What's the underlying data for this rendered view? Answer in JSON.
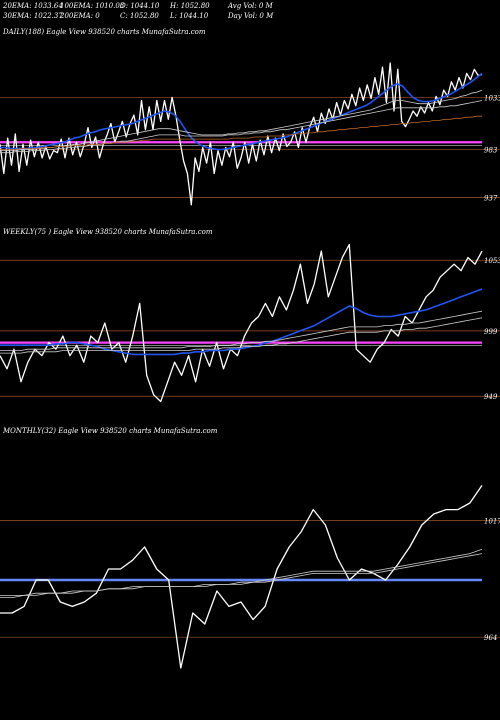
{
  "header": {
    "row1": [
      {
        "text": "20EMA: 1033.64"
      },
      {
        "text": "100EMA: 1010.03"
      },
      {
        "text": "O: 1044.10"
      },
      {
        "text": "H: 1052.80"
      },
      {
        "text": "Avg Vol: 0  M"
      }
    ],
    "row2": [
      {
        "text": "30EMA: 1022.37"
      },
      {
        "text": "200EMA: 0"
      },
      {
        "text": "C: 1052.80"
      },
      {
        "text": "L: 1044.10"
      },
      {
        "text": "Day Vol: 0  M"
      }
    ]
  },
  "colors": {
    "price": "#ffffff",
    "ema_fast": "#2255ee",
    "ema_slow": "#cccccc",
    "ema_brown": "#b8652a",
    "level_magenta": "#ff44ff",
    "level_blue": "#6688ff",
    "grid": "#a0522d"
  },
  "chart_data": [
    {
      "type": "line",
      "label": "DAILY(188) Eagle   View  938520  charts MunafaSutra.com",
      "yticks": [
        1033,
        983,
        937
      ],
      "ylim": [
        925,
        1090
      ],
      "level": 990,
      "series": [
        {
          "name": "price",
          "values": [
            988,
            960,
            994,
            968,
            998,
            962,
            988,
            968,
            992,
            976,
            990,
            975,
            986,
            974,
            982,
            980,
            993,
            975,
            994,
            978,
            990,
            976,
            988,
            1004,
            985,
            995,
            975,
            988,
            997,
            1008,
            990,
            1000,
            1010,
            995,
            1008,
            1016,
            997,
            1030,
            1002,
            1024,
            1002,
            1030,
            1010,
            1030,
            1012,
            1033,
            1015,
            992,
            972,
            960,
            930,
            975,
            962,
            985,
            970,
            990,
            960,
            982,
            968,
            985,
            976,
            990,
            965,
            975,
            990,
            970,
            988,
            972,
            992,
            978,
            996,
            980,
            994,
            982,
            998,
            986,
            990,
            1000,
            985,
            1004,
            990,
            1005,
            1014,
            1000,
            1018,
            1008,
            1022,
            1012,
            1028,
            1016,
            1030,
            1022,
            1036,
            1025,
            1042,
            1030,
            1045,
            1032,
            1052,
            1036,
            1062,
            1028,
            1066,
            1020,
            1060,
            1010,
            1005,
            1012,
            1020,
            1015,
            1024,
            1018,
            1028,
            1020,
            1034,
            1026,
            1040,
            1034,
            1048,
            1040,
            1052,
            1042,
            1056,
            1050,
            1060,
            1054,
            1055
          ]
        },
        {
          "name": "ema-fast",
          "values": [
            985,
            985,
            984,
            984,
            984,
            984,
            985,
            985,
            986,
            987,
            988,
            989,
            990,
            992,
            994,
            995,
            997,
            999,
            1000,
            1002,
            1003,
            1004,
            1005,
            1006,
            1007,
            1008,
            1010,
            1012,
            1014,
            1016,
            1018,
            1020,
            1019,
            1016,
            1010,
            1002,
            995,
            990,
            987,
            985,
            984,
            983,
            983,
            984,
            985,
            986,
            987,
            988,
            989,
            990,
            991,
            992,
            993,
            994,
            995,
            997,
            999,
            1001,
            1003,
            1005,
            1007,
            1009,
            1011,
            1013,
            1015,
            1017,
            1019,
            1021,
            1023,
            1025,
            1028,
            1032,
            1036,
            1040,
            1044,
            1046,
            1044,
            1038,
            1033,
            1030,
            1029,
            1029,
            1030,
            1032,
            1034,
            1036,
            1039,
            1042,
            1045,
            1048,
            1052,
            1056
          ]
        },
        {
          "name": "ema-slow-1",
          "values": [
            982,
            982,
            982,
            982,
            983,
            983,
            983,
            984,
            984,
            985,
            985,
            986,
            986,
            987,
            988,
            988,
            989,
            990,
            991,
            992,
            993,
            994,
            995,
            996,
            997,
            998,
            999,
            1000,
            1001,
            1002,
            1003,
            1003,
            1003,
            1002,
            1001,
            1000,
            999,
            998,
            997,
            997,
            997,
            997,
            997,
            998,
            998,
            999,
            999,
            1000,
            1000,
            1001,
            1001,
            1002,
            1003,
            1004,
            1005,
            1006,
            1007,
            1008,
            1009,
            1010,
            1011,
            1012,
            1013,
            1014,
            1015,
            1016,
            1017,
            1018,
            1019,
            1020,
            1021,
            1023,
            1025,
            1027,
            1029,
            1030,
            1030,
            1029,
            1028,
            1027,
            1027,
            1027,
            1028,
            1029,
            1030,
            1031,
            1032,
            1034,
            1035,
            1037,
            1038,
            1040
          ]
        },
        {
          "name": "ema-slow-2",
          "values": [
            980,
            980,
            980,
            981,
            981,
            981,
            982,
            982,
            982,
            983,
            983,
            984,
            984,
            985,
            985,
            986,
            986,
            987,
            987,
            988,
            989,
            989,
            990,
            991,
            991,
            992,
            993,
            994,
            995,
            996,
            997,
            997,
            997,
            997,
            997,
            996,
            996,
            996,
            996,
            996,
            996,
            996,
            996,
            997,
            997,
            997,
            998,
            998,
            999,
            999,
            1000,
            1000,
            1001,
            1002,
            1002,
            1003,
            1004,
            1005,
            1006,
            1007,
            1008,
            1009,
            1010,
            1011,
            1012,
            1013,
            1014,
            1015,
            1016,
            1017,
            1018,
            1019,
            1020,
            1021,
            1022,
            1023,
            1023,
            1023,
            1023,
            1023,
            1023,
            1023,
            1023,
            1024,
            1024,
            1025,
            1025,
            1026,
            1027,
            1028,
            1029,
            1030
          ]
        },
        {
          "name": "ema-brown",
          "values": [
            983,
            983,
            983,
            983,
            984,
            984,
            984,
            984,
            985,
            985,
            985,
            986,
            986,
            986,
            987,
            987,
            987,
            988,
            988,
            988,
            989,
            989,
            990,
            990,
            990,
            991,
            991,
            992,
            992,
            993,
            993,
            993,
            993,
            993,
            993,
            993,
            993,
            993,
            993,
            993,
            993,
            993,
            993,
            993,
            994,
            994,
            994,
            994,
            995,
            995,
            995,
            996,
            996,
            996,
            997,
            997,
            998,
            998,
            999,
            999,
            1000,
            1000,
            1001,
            1001,
            1002,
            1002,
            1003,
            1003,
            1004,
            1004,
            1005,
            1005,
            1006,
            1006,
            1007,
            1007,
            1008,
            1008,
            1009,
            1009,
            1010,
            1010,
            1011,
            1011,
            1012,
            1012,
            1013,
            1013,
            1014,
            1014,
            1015,
            1015
          ]
        }
      ]
    },
    {
      "type": "line",
      "label": "WEEKLY(75                              ) Eagle   View  938520  charts MunafaSutra.com",
      "yticks": [
        1053,
        999,
        949
      ],
      "ylim": [
        940,
        1070
      ],
      "level": 990,
      "series": [
        {
          "name": "price",
          "values": [
            980,
            970,
            985,
            960,
            975,
            985,
            980,
            990,
            985,
            995,
            980,
            988,
            975,
            995,
            990,
            1005,
            985,
            990,
            975,
            995,
            1020,
            965,
            950,
            945,
            960,
            975,
            965,
            980,
            960,
            985,
            972,
            990,
            970,
            985,
            980,
            995,
            1005,
            1010,
            1020,
            1010,
            1025,
            1015,
            1030,
            1050,
            1020,
            1035,
            1060,
            1025,
            1040,
            1055,
            1065,
            985,
            980,
            975,
            985,
            990,
            1000,
            995,
            1010,
            1005,
            1015,
            1025,
            1030,
            1040,
            1045,
            1050,
            1045,
            1055,
            1050,
            1060
          ]
        },
        {
          "name": "ema-fast",
          "values": [
            988,
            988,
            988,
            988,
            988,
            988,
            988,
            988,
            989,
            989,
            990,
            990,
            989,
            988,
            987,
            985,
            984,
            983,
            982,
            981,
            981,
            981,
            981,
            981,
            981,
            981,
            982,
            982,
            983,
            983,
            984,
            984,
            984,
            985,
            985,
            986,
            987,
            988,
            990,
            991,
            993,
            995,
            997,
            999,
            1001,
            1003,
            1006,
            1009,
            1012,
            1015,
            1018,
            1016,
            1013,
            1011,
            1010,
            1010,
            1010,
            1011,
            1012,
            1013,
            1014,
            1015,
            1017,
            1019,
            1021,
            1023,
            1025,
            1027,
            1029,
            1031
          ]
        },
        {
          "name": "ema-slow-1",
          "values": [
            984,
            984,
            984,
            984,
            985,
            985,
            985,
            985,
            986,
            986,
            986,
            986,
            986,
            986,
            986,
            986,
            986,
            986,
            986,
            986,
            986,
            986,
            986,
            986,
            986,
            986,
            986,
            987,
            987,
            987,
            987,
            988,
            988,
            988,
            989,
            989,
            990,
            990,
            991,
            991,
            992,
            993,
            994,
            995,
            996,
            997,
            998,
            999,
            1000,
            1001,
            1002,
            1002,
            1002,
            1002,
            1002,
            1003,
            1003,
            1004,
            1004,
            1005,
            1005,
            1006,
            1007,
            1008,
            1009,
            1010,
            1011,
            1012,
            1013,
            1014
          ]
        },
        {
          "name": "ema-slow-2",
          "values": [
            982,
            982,
            982,
            982,
            983,
            983,
            983,
            983,
            983,
            984,
            984,
            984,
            984,
            984,
            984,
            984,
            984,
            984,
            984,
            984,
            984,
            984,
            984,
            984,
            984,
            984,
            984,
            984,
            985,
            985,
            985,
            985,
            986,
            986,
            986,
            987,
            987,
            987,
            988,
            988,
            989,
            989,
            990,
            991,
            992,
            993,
            994,
            995,
            996,
            997,
            998,
            998,
            998,
            998,
            998,
            999,
            999,
            999,
            1000,
            1000,
            1001,
            1001,
            1002,
            1003,
            1004,
            1005,
            1006,
            1007,
            1008,
            1009
          ]
        }
      ]
    },
    {
      "type": "line",
      "label": "MONTHLY(32) Eagle   View  938520  charts MunafaSutra.com",
      "yticks": [
        1017,
        964
      ],
      "ylim": [
        940,
        1055
      ],
      "level": 990,
      "series": [
        {
          "name": "price",
          "values": [
            975,
            975,
            978,
            990,
            990,
            980,
            978,
            980,
            984,
            995,
            995,
            999,
            1005,
            995,
            990,
            950,
            975,
            970,
            985,
            978,
            980,
            972,
            978,
            995,
            1005,
            1012,
            1022,
            1015,
            1000,
            990,
            995,
            993,
            990,
            997,
            1005,
            1015,
            1020,
            1022,
            1022,
            1025,
            1033
          ]
        },
        {
          "name": "ema-slow-1",
          "values": [
            982,
            982,
            983,
            983,
            984,
            984,
            984,
            985,
            985,
            986,
            986,
            987,
            987,
            987,
            987,
            987,
            987,
            988,
            988,
            988,
            989,
            989,
            990,
            991,
            992,
            993,
            994,
            994,
            994,
            994,
            994,
            994,
            995,
            996,
            997,
            998,
            999,
            1000,
            1001,
            1002,
            1004
          ]
        },
        {
          "name": "ema-slow-2",
          "values": [
            983,
            983,
            983,
            984,
            984,
            984,
            985,
            985,
            985,
            986,
            986,
            986,
            987,
            987,
            987,
            987,
            987,
            987,
            988,
            988,
            988,
            989,
            989,
            990,
            991,
            992,
            993,
            993,
            993,
            993,
            993,
            993,
            994,
            995,
            996,
            997,
            998,
            999,
            1000,
            1001,
            1002
          ]
        }
      ]
    }
  ]
}
